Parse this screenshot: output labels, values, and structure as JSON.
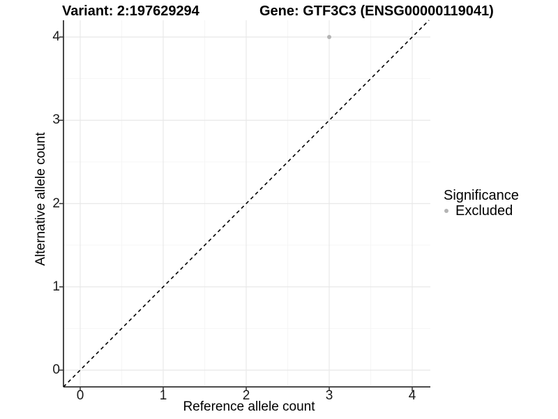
{
  "chart_data": {
    "type": "scatter",
    "title_left": "Variant: 2:197629294",
    "title_right": "Gene: GTF3C3 (ENSG00000119041)",
    "xlabel": "Reference allele count",
    "ylabel": "Alternative allele count",
    "xlim": [
      -0.2,
      4.2
    ],
    "ylim": [
      -0.2,
      4.2
    ],
    "x_ticks": [
      "0",
      "1",
      "2",
      "3",
      "4"
    ],
    "y_ticks": [
      "0",
      "1",
      "2",
      "3",
      "4"
    ],
    "grid": "white panel with light gray major gridlines at integers and minor gridlines at 0.5 steps",
    "reference_line": {
      "type": "identity y=x",
      "style": "dashed",
      "color": "#000000"
    },
    "series": [
      {
        "name": "Excluded",
        "marker": "circle",
        "color": "#b4b4b4",
        "points": [
          {
            "x": 3,
            "y": 4
          }
        ]
      }
    ],
    "legend": {
      "title": "Significance",
      "position": "right",
      "items": [
        {
          "label": "Excluded",
          "marker": "circle",
          "color": "#b4b4b4"
        }
      ]
    }
  },
  "colors": {
    "background": "#ffffff",
    "grid_major": "#e8e8e8",
    "grid_minor": "#f4f4f4",
    "axis_line": "#333333",
    "tick_mark": "#333333",
    "ref_line": "#000000",
    "point": "#b4b4b4",
    "text": "#000000"
  }
}
